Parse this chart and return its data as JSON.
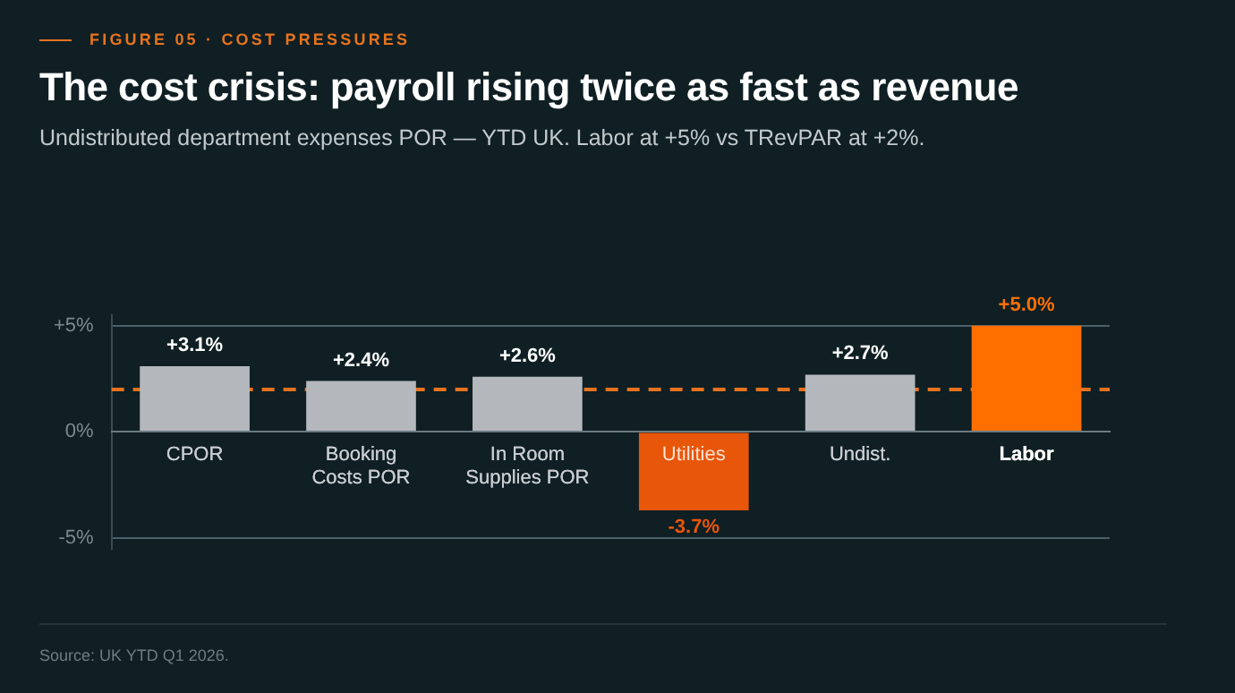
{
  "chart_data": {
    "type": "bar",
    "title": "The cost crisis: payroll rising twice as fast as revenue",
    "subtitle": "Undistributed department expenses POR — YTD UK. Labor at +5% vs TRevPAR at +2%.",
    "categories": [
      "CPOR",
      "Booking Costs POR",
      "In Room Supplies POR",
      "Utilities",
      "Undist.",
      "Labor"
    ],
    "values": [
      3.1,
      2.4,
      2.6,
      -3.7,
      2.7,
      5.0
    ],
    "colors": [
      "#b4b8bd",
      "#b4b8bd",
      "#b4b8bd",
      "#e8560a",
      "#b4b8bd",
      "#ff6f00"
    ],
    "value_labels": [
      "+3.1%",
      "+2.4%",
      "+2.6%",
      "-3.7%",
      "+2.7%",
      "+5.0%"
    ],
    "ylim": [
      -5.5,
      5.5
    ],
    "yticks": [
      {
        "value": -5,
        "label": "-5%"
      },
      {
        "value": 0,
        "label": "0%"
      },
      {
        "value": 5,
        "label": "+5%"
      }
    ],
    "grid": "y",
    "ref_lines": [
      {
        "axis": "y",
        "value": 2,
        "color": "#e8731e",
        "line_style": "dashed"
      }
    ],
    "annotations": [
      "FIGURE 05 · COST PRESSURES",
      "Source: UK YTD Q1 2026."
    ]
  }
}
